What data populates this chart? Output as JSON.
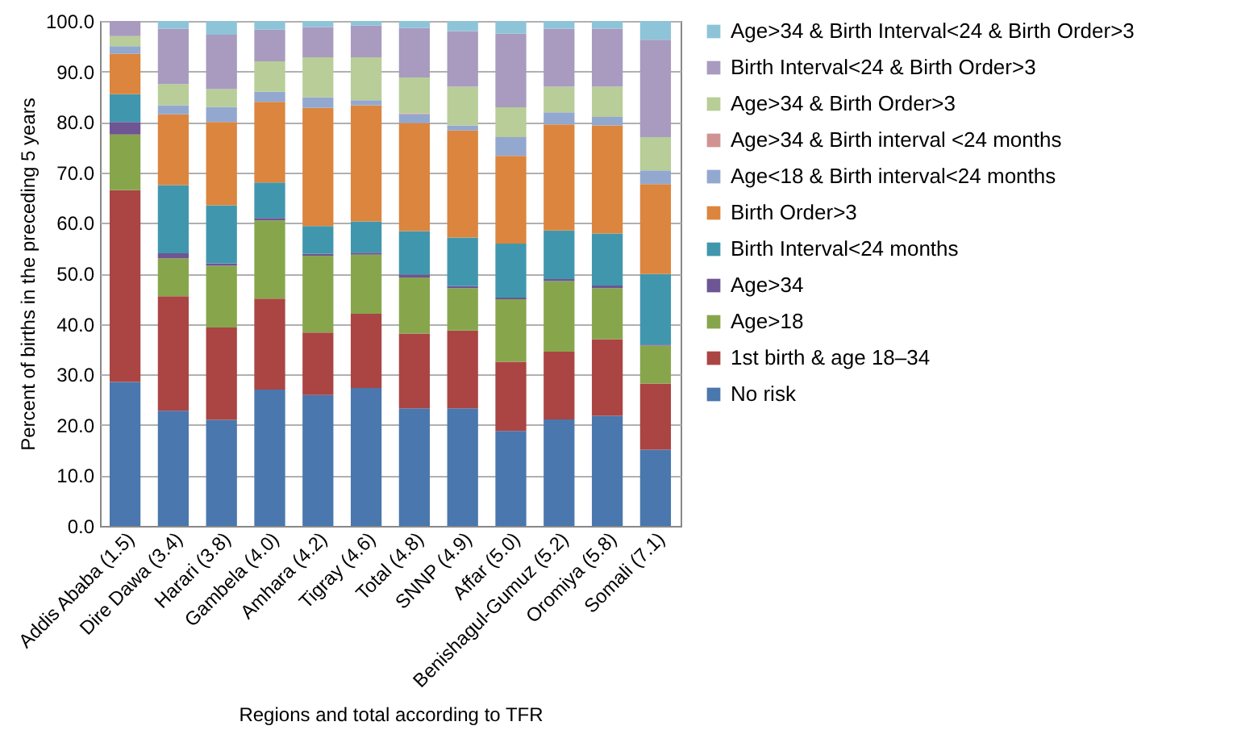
{
  "chart_data": {
    "type": "bar",
    "stacked": true,
    "xlabel": "Regions and total according to TFR",
    "ylabel": "Percent of births in the preceding 5 years",
    "categories": [
      "Addis Ababa (1.5)",
      "Dire Dawa (3.4)",
      "Harari (3.8)",
      "Gambela (4.0)",
      "Amhara (4.2)",
      "Tigray (4.6)",
      "Total (4.8)",
      "SNNP (4.9)",
      "Affar (5.0)",
      "Benishagul-Gumuz (5.2)",
      "Oromiya (5.8)",
      "Somali (7.1)"
    ],
    "series": [
      {
        "name": "No risk",
        "color": "#4a77ad",
        "values": [
          28.5,
          22.8,
          21.0,
          27.0,
          25.9,
          27.3,
          23.3,
          23.3,
          18.8,
          21.1,
          21.8,
          15.1
        ]
      },
      {
        "name": "1st birth & age 18–34",
        "color": "#aa4543",
        "values": [
          38.0,
          22.7,
          18.3,
          18.0,
          12.4,
          14.7,
          14.8,
          15.4,
          13.7,
          13.4,
          15.2,
          13.1
        ]
      },
      {
        "name": "Age>18",
        "color": "#87a64c",
        "values": [
          11.0,
          7.5,
          12.2,
          15.5,
          15.2,
          11.7,
          11.1,
          8.4,
          12.4,
          14.0,
          10.1,
          7.5
        ]
      },
      {
        "name": "Age>34",
        "color": "#6e5594",
        "values": [
          2.5,
          1.0,
          0.5,
          0.5,
          0.4,
          0.4,
          0.6,
          0.4,
          0.3,
          0.4,
          0.5,
          0.2
        ]
      },
      {
        "name": "Birth Interval<24 months",
        "color": "#4097ad",
        "values": [
          5.5,
          13.5,
          11.5,
          7.0,
          5.5,
          6.2,
          8.6,
          9.6,
          10.7,
          9.6,
          10.3,
          14.0
        ]
      },
      {
        "name": "Birth Order>3",
        "color": "#db853e",
        "values": [
          8.0,
          14.0,
          16.5,
          16.0,
          23.4,
          23.0,
          21.4,
          21.2,
          17.4,
          21.0,
          21.4,
          17.8
        ]
      },
      {
        "name": "Age<18 & Birth interval<24 months",
        "color": "#93a8cf",
        "values": [
          1.5,
          1.8,
          3.0,
          2.0,
          2.1,
          1.0,
          1.7,
          1.0,
          3.7,
          2.4,
          1.7,
          2.7
        ]
      },
      {
        "name": "Age>34 & Birth interval <24 months",
        "color": "#d19392",
        "values": [
          0.0,
          0.0,
          0.0,
          0.0,
          0.0,
          0.0,
          0.2,
          0.0,
          0.0,
          0.0,
          0.0,
          0.0
        ]
      },
      {
        "name": "Age>34 & Birth Order>3",
        "color": "#b8cd98",
        "values": [
          2.0,
          4.2,
          3.5,
          6.0,
          7.9,
          8.5,
          7.1,
          7.7,
          5.9,
          5.1,
          6.0,
          6.6
        ]
      },
      {
        "name": "Birth Interval<24 & Birth Order>3",
        "color": "#a89bbf",
        "values": [
          3.0,
          11.0,
          10.8,
          6.3,
          6.0,
          6.3,
          9.8,
          11.0,
          14.6,
          11.5,
          11.5,
          19.3
        ]
      },
      {
        "name": "Age>34 & Birth Interval<24 & Birth Order>3",
        "color": "#8ec4d8",
        "values": [
          0.0,
          1.5,
          2.7,
          1.7,
          1.2,
          0.9,
          1.4,
          2.0,
          2.5,
          1.5,
          1.5,
          3.7
        ]
      }
    ],
    "ylim": [
      0,
      100
    ],
    "yticks": [
      {
        "value": 0,
        "label": "0.0"
      },
      {
        "value": 10,
        "label": "10.0"
      },
      {
        "value": 20,
        "label": "20.0"
      },
      {
        "value": 30,
        "label": "30.0"
      },
      {
        "value": 40,
        "label": "40.0"
      },
      {
        "value": 50,
        "label": "50.0"
      },
      {
        "value": 60,
        "label": "60.0"
      },
      {
        "value": 70,
        "label": "70.0"
      },
      {
        "value": 80,
        "label": "80.0"
      },
      {
        "value": 90,
        "label": "90.0"
      },
      {
        "value": 100,
        "label": "100.0"
      }
    ],
    "grid": "y",
    "legend": "right"
  }
}
